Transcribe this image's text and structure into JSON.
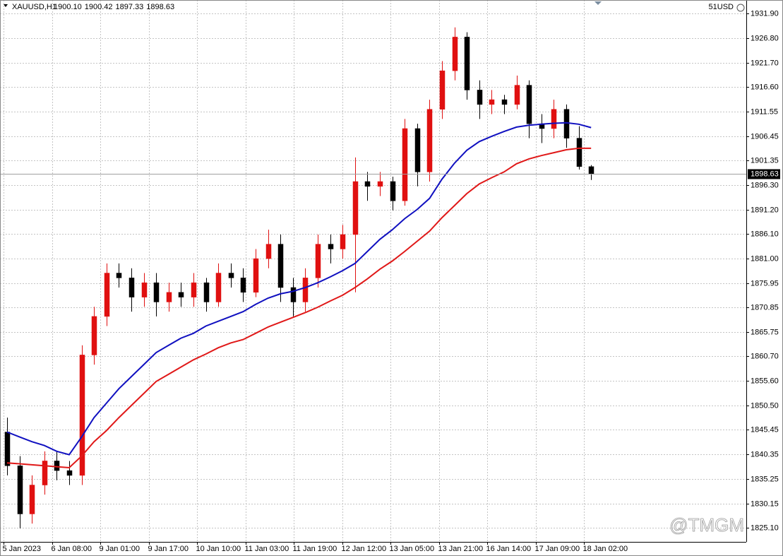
{
  "chart_data": {
    "type": "candlestick",
    "title": "XAUUSD,H1",
    "header_prices": [
      "1900.10",
      "1900.42",
      "1897.33",
      "1898.63"
    ],
    "account": "51USD",
    "watermark": "@TMGM",
    "x_labels": [
      "5 Jan 2023",
      "6 Jan 08:00",
      "9 Jan 01:00",
      "9 Jan 17:00",
      "10 Jan 10:00",
      "11 Jan 03:00",
      "11 Jan 19:00",
      "12 Jan 12:00",
      "13 Jan 05:00",
      "13 Jan 21:00",
      "16 Jan 14:00",
      "17 Jan 09:00",
      "18 Jan 02:00"
    ],
    "open": [
      1845,
      1838,
      1828,
      1834,
      1839,
      1837,
      1836,
      1861,
      1869,
      1878,
      1877,
      1873,
      1876,
      1872,
      1874,
      1873,
      1876,
      1872,
      1878,
      1877,
      1874,
      1881,
      1884,
      1875,
      1872,
      1877,
      1884,
      1883,
      1886,
      1897,
      1896,
      1897,
      1893,
      1908,
      1899,
      1912,
      1920,
      1927,
      1916,
      1913,
      1914,
      1913,
      1917,
      1909,
      1908,
      1912,
      1906,
      1900.1
    ],
    "high": [
      1848,
      1840,
      1836,
      1841,
      1841,
      1839,
      1863,
      1871,
      1880,
      1880,
      1879,
      1878,
      1878,
      1876,
      1876,
      1878,
      1877,
      1880,
      1880,
      1879,
      1883,
      1887,
      1886,
      1877,
      1879,
      1886,
      1886,
      1888,
      1902,
      1899,
      1899,
      1898,
      1910,
      1909,
      1914,
      1922,
      1929,
      1928,
      1918,
      1916,
      1915,
      1919,
      1918,
      1911,
      1914,
      1913,
      1908.5,
      1900.42
    ],
    "low": [
      1836,
      1825,
      1826,
      1832,
      1835,
      1834,
      1834,
      1859,
      1867,
      1875,
      1870,
      1871,
      1869,
      1870,
      1871,
      1871,
      1870,
      1871,
      1875,
      1872,
      1873,
      1879,
      1872,
      1869,
      1870,
      1875,
      1880,
      1881,
      1874,
      1893,
      1894,
      1891,
      1892,
      1896,
      1897,
      1910,
      1918,
      1914,
      1910,
      1911,
      1911,
      1912,
      1906,
      1905,
      1906,
      1904,
      1899.5,
      1897.33
    ],
    "close": [
      1838,
      1828,
      1834,
      1839,
      1837,
      1836,
      1861,
      1869,
      1878,
      1877,
      1873,
      1876,
      1872,
      1874,
      1873,
      1876,
      1872,
      1878,
      1877,
      1874,
      1881,
      1884,
      1875,
      1872,
      1877,
      1884,
      1883,
      1886,
      1897,
      1896,
      1897,
      1893,
      1908,
      1899,
      1912,
      1920,
      1927,
      1916,
      1913,
      1914,
      1913,
      1917,
      1909,
      1908,
      1912,
      1906,
      1900.1,
      1898.63
    ],
    "up_color": "#e01010",
    "down_color": "#000000",
    "series": [
      {
        "color": "#1010c0",
        "values": [
          1845,
          1844,
          1843,
          1842.2,
          1841,
          1840.3,
          1844,
          1848,
          1851,
          1854,
          1856.5,
          1859,
          1861.5,
          1863,
          1864.5,
          1865.5,
          1867,
          1868,
          1869,
          1870,
          1871.5,
          1872.8,
          1873.7,
          1874.2,
          1875,
          1876,
          1877.2,
          1878.5,
          1880,
          1882.5,
          1885,
          1887,
          1889.3,
          1891.2,
          1893.5,
          1897.5,
          1900.8,
          1903.5,
          1905.3,
          1906.4,
          1907.4,
          1908.3,
          1908.7,
          1908.9,
          1909.1,
          1909.2,
          1908.9,
          1908.2
        ]
      },
      {
        "color": "#e01818",
        "values": [
          1838.6,
          1838.4,
          1838.2,
          1838,
          1837.8,
          1837.6,
          1840,
          1843,
          1845.3,
          1848,
          1850.5,
          1853,
          1855.5,
          1857,
          1858.5,
          1860,
          1861.2,
          1862.5,
          1863.5,
          1864.2,
          1865.5,
          1866.8,
          1867.8,
          1868.8,
          1869.8,
          1870.9,
          1872.2,
          1873.4,
          1875,
          1876.8,
          1878.8,
          1880.5,
          1882.5,
          1884.6,
          1886.7,
          1889.5,
          1892,
          1894.5,
          1896.5,
          1897.8,
          1899,
          1900.7,
          1901.7,
          1902.4,
          1903,
          1903.6,
          1903.9,
          1903.9
        ]
      }
    ],
    "last_price": 1898.63,
    "ylim": [
      1822.2,
      1934.69
    ],
    "yticks": [
      {
        "value": 1931.9,
        "label": "1931.90"
      },
      {
        "value": 1926.8,
        "label": "1926.80"
      },
      {
        "value": 1921.7,
        "label": "1921.70"
      },
      {
        "value": 1916.6,
        "label": "1916.60"
      },
      1911.55,
      1906.45,
      1901.35,
      {
        "value": 1896.3,
        "label": "1896.30"
      },
      {
        "value": 1891.2,
        "label": "1891.20"
      },
      {
        "value": 1886.1,
        "label": "1886.10"
      },
      {
        "value": 1881,
        "label": "1881.00"
      },
      1875.95,
      1870.85,
      1865.75,
      {
        "value": 1860.7,
        "label": "1860.70"
      },
      {
        "value": 1855.6,
        "label": "1855.60"
      },
      {
        "value": 1850.5,
        "label": "1850.50"
      },
      1845.45,
      1840.35,
      1835.25,
      1830.15,
      {
        "value": 1825.1,
        "label": "1825.10"
      }
    ],
    "grid": true
  }
}
